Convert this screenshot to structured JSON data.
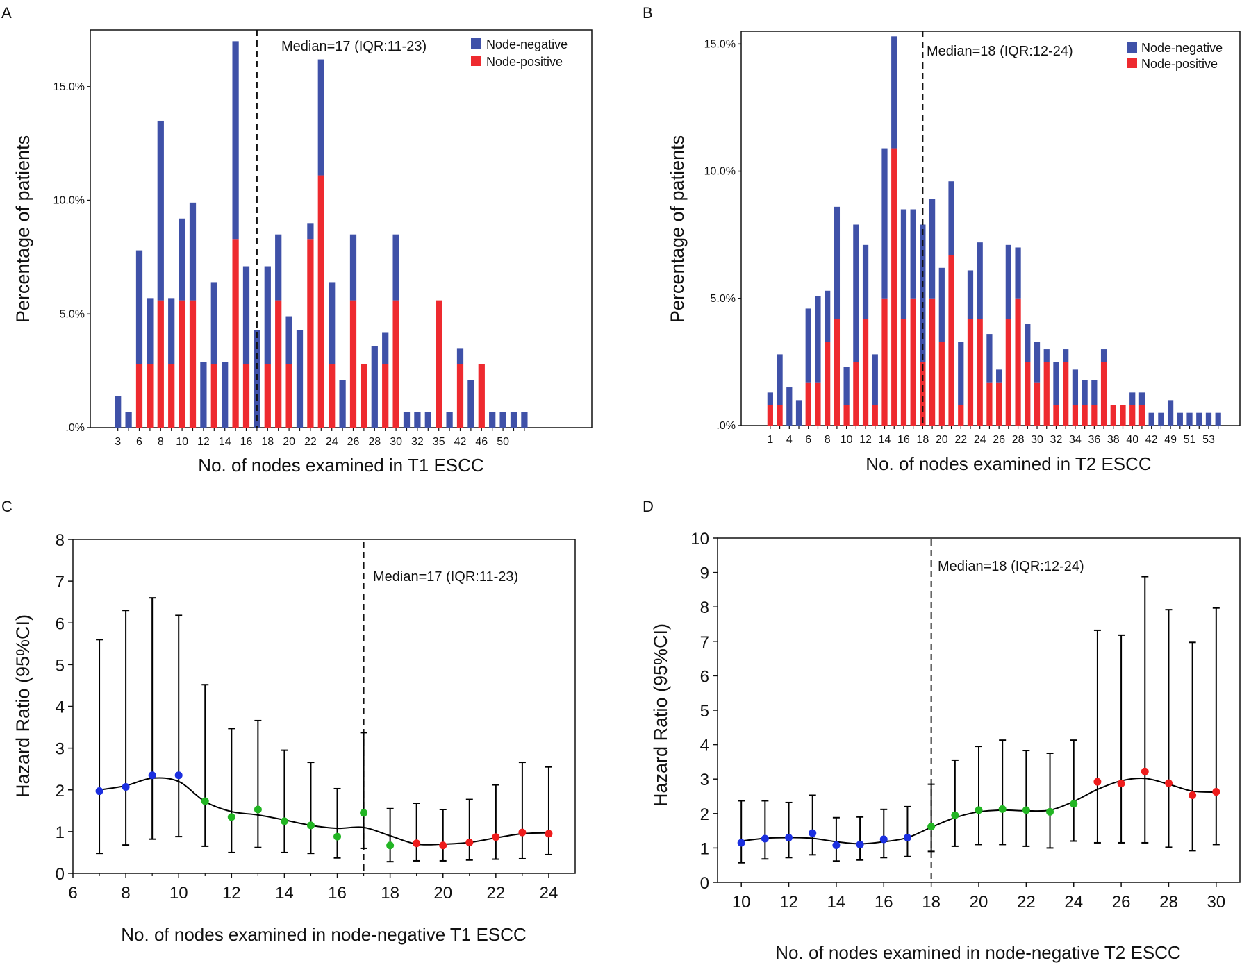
{
  "colors": {
    "negative": "#3F51A8",
    "positive": "#EE2A2F",
    "green": "#22B523",
    "blue": "#1B2FE0",
    "red": "#EE1C1C",
    "line": "#000000"
  },
  "chart_data": [
    {
      "panel": "A",
      "type": "bar",
      "stacked": true,
      "title": "",
      "xlabel": "No. of nodes examined in T1 ESCC",
      "ylabel": "Percentage of patients",
      "ylim": [
        0,
        17.5
      ],
      "yticks": [
        0,
        5,
        10,
        15
      ],
      "ytick_labels": [
        ".0%",
        "5.0%",
        "10.0%",
        "15.0%"
      ],
      "categories": [
        "3",
        "4",
        "6",
        "7",
        "8",
        "9",
        "10",
        "11",
        "12",
        "13",
        "14",
        "15",
        "16",
        "17",
        "18",
        "19",
        "20",
        "21",
        "22",
        "23",
        "24",
        "25",
        "26",
        "27",
        "28",
        "29",
        "30",
        "31",
        "32",
        "33",
        "35",
        "40",
        "42",
        "44",
        "46",
        "48",
        "50",
        "51",
        "52"
      ],
      "category_labels": [
        "3",
        "",
        "6",
        "",
        "8",
        "",
        "10",
        "",
        "12",
        "",
        "14",
        "",
        "16",
        "",
        "18",
        "",
        "20",
        "",
        "22",
        "",
        "24",
        "",
        "26",
        "",
        "28",
        "",
        "30",
        "",
        "32",
        "",
        "35",
        "",
        "42",
        "",
        "46",
        "",
        "50",
        "",
        ""
      ],
      "series": [
        {
          "name": "Node-positive",
          "values": [
            0,
            0,
            2.8,
            2.8,
            5.6,
            2.8,
            5.6,
            5.6,
            0,
            2.8,
            0,
            8.3,
            2.8,
            0,
            2.8,
            5.6,
            2.8,
            0,
            8.3,
            11.1,
            2.8,
            0,
            5.6,
            2.8,
            0,
            2.8,
            5.6,
            0,
            0,
            0,
            5.6,
            0,
            2.8,
            0,
            2.8,
            0,
            0,
            0,
            0
          ]
        },
        {
          "name": "Node-negative",
          "values": [
            1.4,
            0.7,
            5.0,
            2.9,
            7.9,
            2.9,
            3.6,
            4.3,
            2.9,
            3.6,
            2.9,
            8.7,
            4.3,
            4.3,
            4.3,
            2.9,
            2.1,
            4.3,
            0.7,
            5.1,
            3.6,
            2.1,
            2.9,
            0,
            3.6,
            1.4,
            2.9,
            0.7,
            0.7,
            0.7,
            0,
            0.7,
            0.7,
            2.1,
            0,
            0.7,
            0.7,
            0.7,
            0.7
          ]
        }
      ],
      "legend": [
        "Node-negative",
        "Node-positive"
      ],
      "legend_position": "top-right",
      "median_at": "17",
      "median_label": "Median=17 (IQR:11-23)"
    },
    {
      "panel": "B",
      "type": "bar",
      "stacked": true,
      "title": "",
      "xlabel": "No. of nodes examined in T2 ESCC",
      "ylabel": "Percentage of patients",
      "ylim": [
        0,
        15.5
      ],
      "yticks": [
        0,
        5,
        10,
        15
      ],
      "ytick_labels": [
        ".0%",
        "5.0%",
        "10.0%",
        "15.0%"
      ],
      "categories": [
        "1",
        "3",
        "4",
        "5",
        "6",
        "7",
        "8",
        "9",
        "10",
        "11",
        "12",
        "13",
        "14",
        "15",
        "16",
        "17",
        "18",
        "19",
        "20",
        "21",
        "22",
        "23",
        "24",
        "25",
        "26",
        "27",
        "28",
        "29",
        "30",
        "31",
        "32",
        "33",
        "34",
        "35",
        "36",
        "37",
        "38",
        "39",
        "40",
        "41",
        "42",
        "45",
        "49",
        "50",
        "51",
        "52",
        "53",
        "54"
      ],
      "category_labels": [
        "1",
        "",
        "4",
        "",
        "6",
        "",
        "8",
        "",
        "10",
        "",
        "12",
        "",
        "14",
        "",
        "16",
        "",
        "18",
        "",
        "20",
        "",
        "22",
        "",
        "24",
        "",
        "26",
        "",
        "28",
        "",
        "30",
        "",
        "32",
        "",
        "34",
        "",
        "36",
        "",
        "38",
        "",
        "40",
        "",
        "42",
        "",
        "49",
        "",
        "51",
        "",
        "53",
        ""
      ],
      "series": [
        {
          "name": "Node-positive",
          "values": [
            0.8,
            0.8,
            0,
            0,
            1.7,
            1.7,
            3.3,
            4.2,
            0.8,
            2.5,
            4.2,
            0.8,
            5.0,
            10.9,
            4.2,
            5.0,
            2.5,
            5.0,
            3.3,
            6.7,
            0.8,
            4.2,
            4.2,
            1.7,
            1.7,
            4.2,
            5.0,
            2.5,
            1.7,
            2.5,
            0.8,
            2.5,
            0.8,
            0.8,
            0.8,
            2.5,
            0.8,
            0.8,
            0.8,
            0.8,
            0,
            0,
            0,
            0,
            0,
            0,
            0,
            0
          ]
        },
        {
          "name": "Node-negative",
          "values": [
            0.5,
            2.0,
            1.5,
            1.0,
            2.9,
            3.4,
            2.0,
            4.4,
            1.5,
            5.4,
            2.9,
            2.0,
            5.9,
            4.4,
            4.3,
            3.5,
            5.4,
            3.9,
            2.9,
            2.9,
            2.5,
            1.9,
            3.0,
            1.9,
            0.5,
            2.9,
            2.0,
            1.5,
            1.6,
            0.5,
            1.7,
            0.5,
            1.4,
            1.0,
            1.0,
            0.5,
            0,
            0,
            0.5,
            0.5,
            0.5,
            0.5,
            1.0,
            0.5,
            0.5,
            0.5,
            0.5,
            0.5
          ]
        }
      ],
      "legend": [
        "Node-negative",
        "Node-positive"
      ],
      "legend_position": "top-right",
      "median_at": "18",
      "median_label": "Median=18 (IQR:12-24)"
    },
    {
      "panel": "C",
      "type": "line",
      "title": "",
      "xlabel": "No. of nodes examined in node-negative T1 ESCC",
      "ylabel": "Hazard Ratio (95%CI)",
      "xlim": [
        6,
        25
      ],
      "ylim": [
        0,
        8
      ],
      "xticks": [
        6,
        8,
        10,
        12,
        14,
        16,
        18,
        20,
        22,
        24
      ],
      "yticks": [
        0,
        1,
        2,
        3,
        4,
        5,
        6,
        7,
        8
      ],
      "x": [
        7,
        8,
        9,
        10,
        11,
        12,
        13,
        14,
        15,
        16,
        17,
        18,
        19,
        20,
        21,
        22,
        23,
        24
      ],
      "hr": [
        1.97,
        2.07,
        2.35,
        2.35,
        1.73,
        1.35,
        1.53,
        1.25,
        1.15,
        0.88,
        1.45,
        0.67,
        0.72,
        0.67,
        0.74,
        0.87,
        0.98,
        0.95
      ],
      "ci_low": [
        0.48,
        0.68,
        0.82,
        0.88,
        0.65,
        0.5,
        0.62,
        0.5,
        0.48,
        0.37,
        0.6,
        0.28,
        0.3,
        0.3,
        0.32,
        0.34,
        0.35,
        0.45
      ],
      "ci_high": [
        5.6,
        6.3,
        6.6,
        6.18,
        4.52,
        3.47,
        3.66,
        2.95,
        2.66,
        2.03,
        3.37,
        1.55,
        1.68,
        1.53,
        1.77,
        2.12,
        2.66,
        2.55
      ],
      "smooth": [
        2.0,
        2.1,
        2.28,
        2.2,
        1.72,
        1.48,
        1.4,
        1.28,
        1.15,
        1.08,
        1.1,
        0.9,
        0.7,
        0.7,
        0.74,
        0.85,
        0.95,
        0.97
      ],
      "point_colors": [
        "blue",
        "blue",
        "blue",
        "blue",
        "green",
        "green",
        "green",
        "green",
        "green",
        "green",
        "green",
        "green",
        "red",
        "red",
        "red",
        "red",
        "red",
        "red"
      ],
      "median_at": 17,
      "median_label": "Median=17 (IQR:11-23)"
    },
    {
      "panel": "D",
      "type": "line",
      "title": "",
      "xlabel": "No. of nodes examined in node-negative T2 ESCC",
      "ylabel": "Hazard Ratio (95%CI)",
      "xlim": [
        9,
        31
      ],
      "ylim": [
        0,
        10
      ],
      "xticks": [
        10,
        12,
        14,
        16,
        18,
        20,
        22,
        24,
        26,
        28,
        30
      ],
      "yticks": [
        0,
        1,
        2,
        3,
        4,
        5,
        6,
        7,
        8,
        9,
        10
      ],
      "x": [
        10,
        11,
        12,
        13,
        14,
        15,
        16,
        17,
        18,
        19,
        20,
        21,
        22,
        23,
        24,
        25,
        26,
        27,
        28,
        29,
        30
      ],
      "hr": [
        1.15,
        1.27,
        1.3,
        1.43,
        1.08,
        1.1,
        1.25,
        1.3,
        1.62,
        1.95,
        2.1,
        2.13,
        2.1,
        2.05,
        2.28,
        2.92,
        2.87,
        3.22,
        2.88,
        2.53,
        2.63
      ],
      "ci_low": [
        0.57,
        0.68,
        0.72,
        0.8,
        0.62,
        0.65,
        0.72,
        0.75,
        0.9,
        1.05,
        1.1,
        1.1,
        1.05,
        1.0,
        1.2,
        1.15,
        1.15,
        1.15,
        1.02,
        0.92,
        1.1
      ],
      "ci_high": [
        2.37,
        2.37,
        2.32,
        2.53,
        1.88,
        1.9,
        2.12,
        2.2,
        2.85,
        3.55,
        3.95,
        4.13,
        3.83,
        3.75,
        4.13,
        7.32,
        7.18,
        8.88,
        7.92,
        6.97,
        7.97
      ],
      "smooth": [
        1.2,
        1.28,
        1.3,
        1.28,
        1.18,
        1.12,
        1.18,
        1.3,
        1.6,
        1.88,
        2.05,
        2.1,
        2.08,
        2.1,
        2.35,
        2.7,
        2.95,
        3.02,
        2.85,
        2.65,
        2.62
      ],
      "point_colors": [
        "blue",
        "blue",
        "blue",
        "blue",
        "blue",
        "blue",
        "blue",
        "blue",
        "green",
        "green",
        "green",
        "green",
        "green",
        "green",
        "green",
        "red",
        "red",
        "red",
        "red",
        "red",
        "red"
      ],
      "median_at": 18,
      "median_label": "Median=18 (IQR:12-24)"
    }
  ]
}
